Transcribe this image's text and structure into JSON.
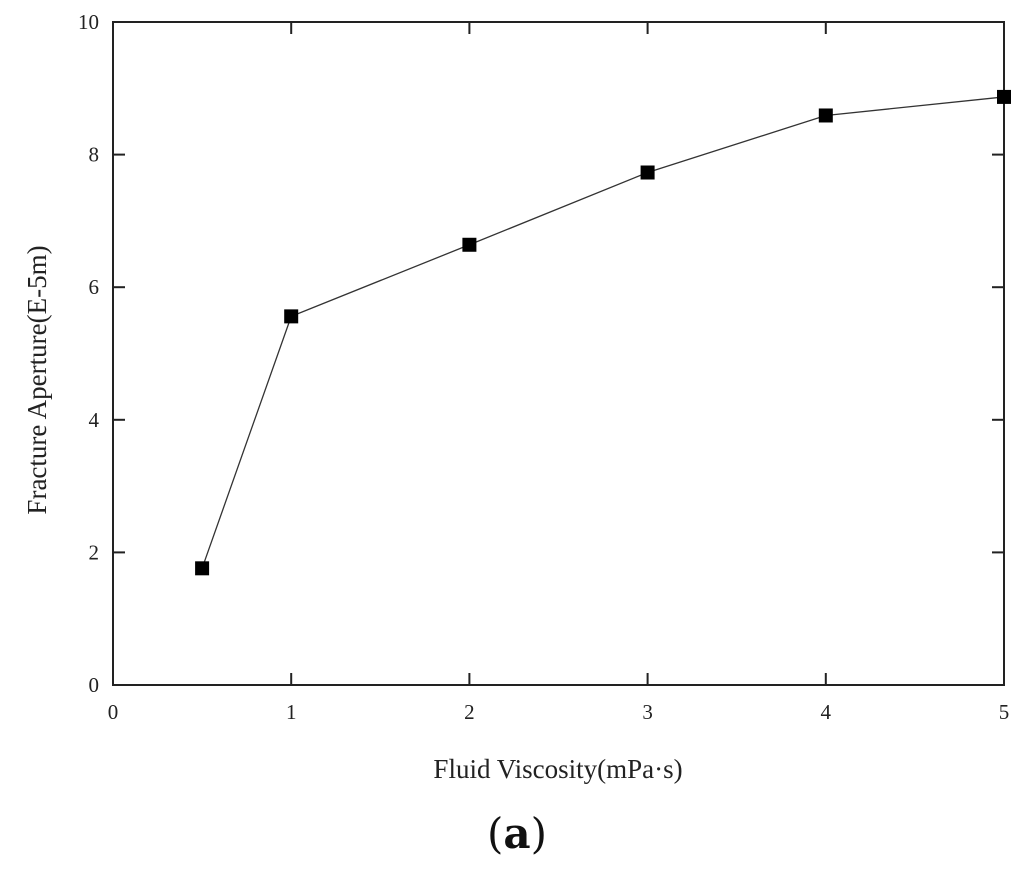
{
  "chart_data": {
    "type": "line",
    "xlabel": "Fluid Viscosity(mPa·s)",
    "ylabel": "Fracture Aperture(E-5m)",
    "xlim": [
      0,
      5
    ],
    "ylim": [
      0,
      10
    ],
    "xticks": [
      0,
      1,
      2,
      3,
      4,
      5
    ],
    "yticks": [
      0,
      2,
      4,
      6,
      8,
      10
    ],
    "grid": false,
    "marker": "square",
    "series": [
      {
        "x": [
          0.5,
          1,
          2,
          3,
          4,
          5
        ],
        "y": [
          1.76,
          5.56,
          6.64,
          7.73,
          8.59,
          8.87
        ]
      }
    ]
  },
  "panel": {
    "open": "(",
    "letter": "a",
    "close": ")"
  },
  "colors": {
    "line": "#333333",
    "marker": "#000000",
    "axis": "#222222"
  }
}
